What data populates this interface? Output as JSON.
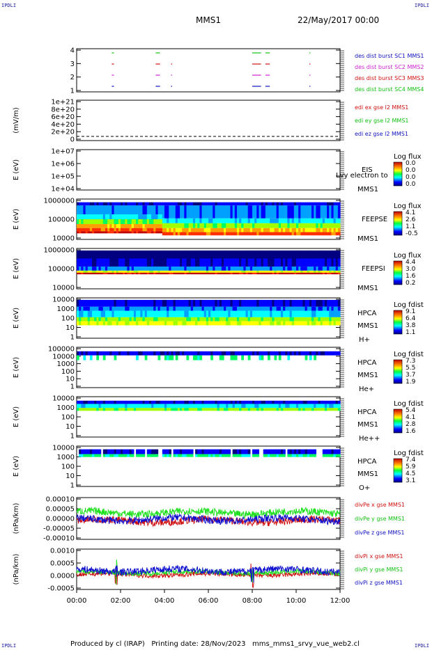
{
  "corners": {
    "tl": "IPDLI",
    "tr": "IPDLI",
    "bl": "IPDLI",
    "br": "IPDLI"
  },
  "header": {
    "spacecraft": "MMS1",
    "date": "22/May/2017 00:00"
  },
  "footer": "Produced by cl (IRAP)   Printing date: 28/Nov/2023   mms_mms1_srvy_vue_web2.cl",
  "colors": {
    "spectro_scale": [
      "#000080",
      "#0000ff",
      "#00a0ff",
      "#00ffff",
      "#00ff60",
      "#a0ff00",
      "#ffff00",
      "#ffa000",
      "#ff3000",
      "#c00000"
    ]
  },
  "chart_data": [
    {
      "id": "burst",
      "type": "scatter",
      "ytick_labels": [
        "4",
        "3",
        "2",
        "1"
      ],
      "legend": [
        {
          "text": "des dist burst SC1 MMS1",
          "color": "#1010c0"
        },
        {
          "text": "des dist burst SC2 MMS2",
          "color": "#d020d0"
        },
        {
          "text": "des dist burst SC3 MMS3",
          "color": "#d01010"
        },
        {
          "text": "des dist burst SC4 MMS4",
          "color": "#10c010"
        }
      ],
      "intervals_hours": [
        [
          1.6,
          1.7
        ],
        [
          3.6,
          3.8
        ],
        [
          4.3,
          4.35
        ],
        [
          8.0,
          8.4
        ],
        [
          8.6,
          8.8
        ],
        [
          10.6,
          10.65
        ]
      ]
    },
    {
      "id": "edi",
      "type": "line",
      "ylabel": "(mV/m)",
      "ytick_labels": [
        "1e+21",
        "8e+20",
        "6e+20",
        "4e+20",
        "2e+20",
        "0"
      ],
      "legend": [
        {
          "text": "edi ex gse l2 MMS1",
          "color": "#d01010"
        },
        {
          "text": "edi ey gse l2 MMS1",
          "color": "#10c010"
        },
        {
          "text": "edi ez gse l2 MMS1",
          "color": "#1010c0"
        }
      ]
    },
    {
      "id": "eis",
      "type": "heatmap",
      "ylabel": "E (eV)",
      "ytick_labels": [
        "1e+07",
        "1e+06",
        "1e+05",
        "1e+04"
      ],
      "side_labels": [
        "EIS",
        "MMS1"
      ],
      "overlay_text": "Lvy electron to",
      "colorbar_title": "Log flux",
      "colorbar_ticks": [
        "0.0",
        "0.0",
        "0.0",
        "0.0"
      ]
    },
    {
      "id": "feepse",
      "type": "heatmap",
      "ylabel": "E (eV)",
      "ytick_labels": [
        "1000000",
        "100000",
        "10000"
      ],
      "side_labels": [
        "FEEPSE",
        "MMS1"
      ],
      "colorbar_title": "Log flux",
      "colorbar_ticks": [
        "4.1",
        "2.6",
        "1.1",
        "-0.5"
      ]
    },
    {
      "id": "feepsi",
      "type": "heatmap",
      "ylabel": "E (eV)",
      "ytick_labels": [
        "1000000",
        "100000",
        "10000"
      ],
      "side_labels": [
        "FEEPSI",
        "MMS1"
      ],
      "colorbar_title": "Log flux",
      "colorbar_ticks": [
        "4.4",
        "3.0",
        "1.6",
        "0.2"
      ]
    },
    {
      "id": "hpca_h",
      "type": "heatmap",
      "ylabel": "E (eV)",
      "ytick_labels": [
        "10000",
        "1000",
        "100",
        "10",
        "1"
      ],
      "side_labels": [
        "HPCA",
        "MMS1",
        "H+"
      ],
      "colorbar_title": "Log fdist",
      "colorbar_ticks": [
        "9.1",
        "6.4",
        "3.8",
        "1.1"
      ]
    },
    {
      "id": "hpca_he",
      "type": "heatmap",
      "ylabel": "E (eV)",
      "ytick_labels": [
        "100000",
        "10000",
        "1000",
        "100",
        "10",
        "1"
      ],
      "side_labels": [
        "HPCA",
        "MMS1",
        "He+"
      ],
      "colorbar_title": "Log fdist",
      "colorbar_ticks": [
        "7.3",
        "5.5",
        "3.7",
        "1.9"
      ]
    },
    {
      "id": "hpca_hepp",
      "type": "heatmap",
      "ylabel": "E (eV)",
      "ytick_labels": [
        "10000",
        "1000",
        "100",
        "10",
        "1"
      ],
      "side_labels": [
        "HPCA",
        "MMS1",
        "He++"
      ],
      "colorbar_title": "Log fdist",
      "colorbar_ticks": [
        "5.4",
        "4.1",
        "2.8",
        "1.6"
      ]
    },
    {
      "id": "hpca_o",
      "type": "heatmap",
      "ylabel": "E (eV)",
      "ytick_labels": [
        "10000",
        "1000",
        "100",
        "10",
        "1"
      ],
      "side_labels": [
        "HPCA",
        "MMS1",
        "O+"
      ],
      "colorbar_title": "Log fdist",
      "colorbar_ticks": [
        "7.4",
        "5.9",
        "4.5",
        "3.1"
      ]
    },
    {
      "id": "divpe",
      "type": "line",
      "ylabel": "(nPa/km)",
      "ytick_labels": [
        "0.00010",
        "0.00005",
        "0.00000",
        "-0.00005",
        "-0.00010"
      ],
      "ylim": [
        -0.00013,
        0.00012
      ],
      "legend": [
        {
          "text": "divPe x gse MMS1",
          "color": "#d01010"
        },
        {
          "text": "divPe y gse MMS1",
          "color": "#10c010"
        },
        {
          "text": "divPe z gse MMS1",
          "color": "#1010c0"
        }
      ],
      "series": [
        {
          "name": "divPe x gse MMS1",
          "color": "#d01010",
          "level": -2e-05,
          "noise": 2e-05
        },
        {
          "name": "divPe y gse MMS1",
          "color": "#20e020",
          "level": 3e-05,
          "noise": 2e-05
        },
        {
          "name": "divPe z gse MMS1",
          "color": "#1010d0",
          "level": -1e-05,
          "noise": 2e-05
        }
      ]
    },
    {
      "id": "divpi",
      "type": "line",
      "ylabel": "(nPa/km)",
      "ytick_labels": [
        "0.0010",
        "0.0005",
        "0.0000",
        "-0.0005"
      ],
      "ylim": [
        -0.0008,
        0.0011
      ],
      "legend": [
        {
          "text": "divPi x gse MMS1",
          "color": "#d01010"
        },
        {
          "text": "divPi y gse MMS1",
          "color": "#10c010"
        },
        {
          "text": "divPi z gse MMS1",
          "color": "#1010c0"
        }
      ],
      "series": [
        {
          "name": "divPi x gse MMS1",
          "color": "#d01010",
          "level": -0.0001,
          "noise": 0.0001
        },
        {
          "name": "divPi y gse MMS1",
          "color": "#20e020",
          "level": 0.0,
          "noise": 0.0001
        },
        {
          "name": "divPi z gse MMS1",
          "color": "#1010d0",
          "level": 0.0001,
          "noise": 0.00015
        }
      ]
    }
  ],
  "xaxis": {
    "tick_labels": [
      "00:00",
      "02:00",
      "04:00",
      "06:00",
      "08:00",
      "10:00",
      "12:00"
    ],
    "range_hours": [
      0,
      12
    ]
  }
}
